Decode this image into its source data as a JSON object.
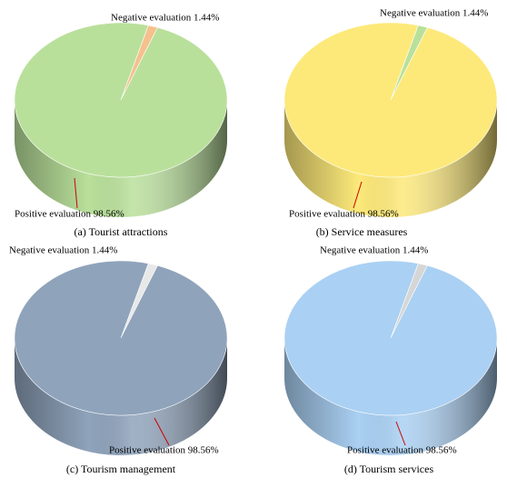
{
  "chart_data": [
    {
      "type": "pie",
      "title": "(a) Tourist attractions",
      "values": [
        1.44,
        98.56
      ],
      "value_labels": [
        "Negative evaluation 1.44%",
        "Positive evaluation 98.56%"
      ],
      "colors": [
        "#f5c08c",
        "#b9e09b"
      ]
    },
    {
      "type": "pie",
      "title": "(b) Service measures",
      "values": [
        1.44,
        98.56
      ],
      "value_labels": [
        "Negative evaluation 1.44%",
        "Positive evaluation 98.56%"
      ],
      "colors": [
        "#b9e09b",
        "#fde97a"
      ]
    },
    {
      "type": "pie",
      "title": "(c) Tourism management",
      "values": [
        1.44,
        98.56
      ],
      "value_labels": [
        "Negative evaluation 1.44%",
        "Positive evaluation 98.56%"
      ],
      "colors": [
        "#e8e8e8",
        "#8fa3bb"
      ]
    },
    {
      "type": "pie",
      "title": "(d) Tourism services",
      "values": [
        1.44,
        98.56
      ],
      "value_labels": [
        "Negative evaluation 1.44%",
        "Positive evaluation 98.56%"
      ],
      "colors": [
        "#d6d6d6",
        "#aad0f3"
      ]
    }
  ]
}
